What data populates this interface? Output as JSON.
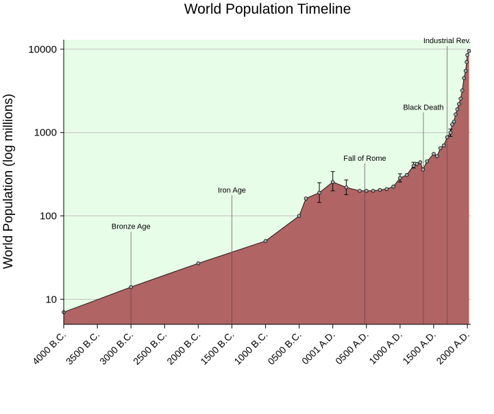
{
  "chart_data": {
    "type": "area",
    "title": "World Population Timeline",
    "xlabel": "",
    "ylabel": "World Population (log millions)",
    "y_scale": "log",
    "xlim": [
      -4000,
      2050
    ],
    "ylim": [
      5,
      13000
    ],
    "grid": true,
    "colors": {
      "plot_bg": "#e8fde8",
      "area_fill": "#b06464",
      "line": "#000000",
      "grid": "#c0c0c0",
      "marker_fill": "#a8a8a8"
    },
    "y_ticks": [
      {
        "value": 10,
        "label": "10"
      },
      {
        "value": 100,
        "label": "100"
      },
      {
        "value": 1000,
        "label": "1000"
      },
      {
        "value": 10000,
        "label": "10000"
      }
    ],
    "x_ticks": [
      {
        "value": -4000,
        "label": "4000  B.C."
      },
      {
        "value": -3500,
        "label": "3500  B.C."
      },
      {
        "value": -3000,
        "label": "3000  B.C."
      },
      {
        "value": -2500,
        "label": "2500  B.C."
      },
      {
        "value": -2000,
        "label": "2000  B.C."
      },
      {
        "value": -1500,
        "label": "1500  B.C."
      },
      {
        "value": -1000,
        "label": "1000  B.C."
      },
      {
        "value": -500,
        "label": "0500  B.C."
      },
      {
        "value": 0,
        "label": "0001  A.D."
      },
      {
        "value": 500,
        "label": "0500  A.D."
      },
      {
        "value": 1000,
        "label": "1000  A.D."
      },
      {
        "value": 1500,
        "label": "1500  A.D."
      },
      {
        "value": 2000,
        "label": "2000  A.D."
      }
    ],
    "series": [
      {
        "points": [
          [
            -4000,
            7
          ],
          [
            -3000,
            14
          ],
          [
            -2000,
            27
          ],
          [
            -1000,
            50
          ],
          [
            -500,
            100
          ],
          [
            -400,
            162
          ],
          [
            -200,
            190
          ],
          [
            0,
            255
          ],
          [
            200,
            220
          ],
          [
            400,
            200
          ],
          [
            500,
            200
          ],
          [
            600,
            200
          ],
          [
            700,
            205
          ],
          [
            800,
            210
          ],
          [
            900,
            225
          ],
          [
            1000,
            285
          ],
          [
            1100,
            310
          ],
          [
            1200,
            400
          ],
          [
            1250,
            420
          ],
          [
            1300,
            440
          ],
          [
            1340,
            360
          ],
          [
            1400,
            450
          ],
          [
            1500,
            555
          ],
          [
            1550,
            520
          ],
          [
            1600,
            650
          ],
          [
            1650,
            700
          ],
          [
            1700,
            880
          ],
          [
            1750,
            1000
          ],
          [
            1775,
            1250
          ],
          [
            1800,
            1350
          ],
          [
            1825,
            1650
          ],
          [
            1850,
            1900
          ],
          [
            1875,
            2200
          ],
          [
            1900,
            2550
          ],
          [
            1925,
            3200
          ],
          [
            1950,
            4500
          ],
          [
            1975,
            5500
          ],
          [
            1990,
            7000
          ],
          [
            2000,
            8500
          ],
          [
            2025,
            9500
          ]
        ]
      }
    ],
    "error_bars": [
      {
        "x": -200,
        "low": 145,
        "high": 250
      },
      {
        "x": 0,
        "low": 200,
        "high": 340
      },
      {
        "x": 200,
        "low": 180,
        "high": 270
      },
      {
        "x": 1000,
        "low": 255,
        "high": 320
      },
      {
        "x": 1200,
        "low": 375,
        "high": 440
      },
      {
        "x": 1750,
        "low": 900,
        "high": 1100
      }
    ],
    "annotations": [
      {
        "label": "Bronze Age",
        "x": -3000,
        "y": 70
      },
      {
        "label": "Iron Age",
        "x": -1500,
        "y": 190
      },
      {
        "label": "Fall of Rome",
        "x": 476,
        "y": 460
      },
      {
        "label": "Black Death",
        "x": 1347,
        "y": 1880
      },
      {
        "label": "Industrial Rev.",
        "x": 1700,
        "y": 11800
      }
    ]
  }
}
